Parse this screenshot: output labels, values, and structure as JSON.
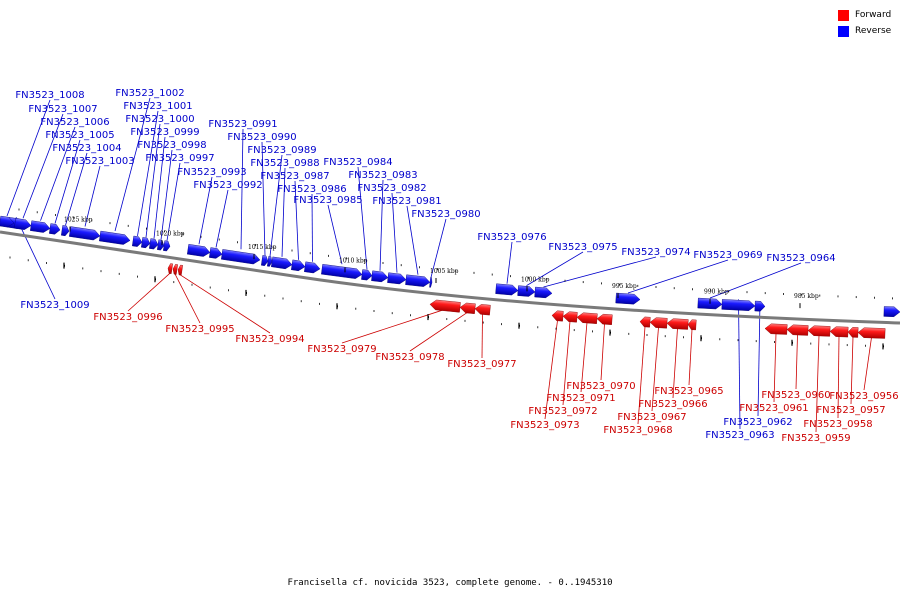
{
  "legend": {
    "forward": {
      "label": "Forward",
      "color": "#ff0000"
    },
    "reverse": {
      "label": "Reverse",
      "color": "#0000ff"
    }
  },
  "caption": "Francisella cf. novicida 3523, complete genome. - 0..1945310",
  "ticks": [
    "1025 kbp",
    "1020 kbp",
    "1015 kbp",
    "1010 kbp",
    "1005 kbp",
    "1000 kbp",
    "995 kbp",
    "990 kbp",
    "985 kbp"
  ],
  "genes": [
    {
      "name": "FN3523_1009",
      "strand": "reverse"
    },
    {
      "name": "FN3523_1008",
      "strand": "reverse"
    },
    {
      "name": "FN3523_1007",
      "strand": "reverse"
    },
    {
      "name": "FN3523_1006",
      "strand": "reverse"
    },
    {
      "name": "FN3523_1005",
      "strand": "reverse"
    },
    {
      "name": "FN3523_1004",
      "strand": "reverse"
    },
    {
      "name": "FN3523_1003",
      "strand": "reverse"
    },
    {
      "name": "FN3523_1002",
      "strand": "reverse"
    },
    {
      "name": "FN3523_1001",
      "strand": "reverse"
    },
    {
      "name": "FN3523_1000",
      "strand": "reverse"
    },
    {
      "name": "FN3523_0999",
      "strand": "reverse"
    },
    {
      "name": "FN3523_0998",
      "strand": "reverse"
    },
    {
      "name": "FN3523_0997",
      "strand": "reverse"
    },
    {
      "name": "FN3523_0996",
      "strand": "forward"
    },
    {
      "name": "FN3523_0995",
      "strand": "forward"
    },
    {
      "name": "FN3523_0994",
      "strand": "forward"
    },
    {
      "name": "FN3523_0993",
      "strand": "reverse"
    },
    {
      "name": "FN3523_0992",
      "strand": "reverse"
    },
    {
      "name": "FN3523_0991",
      "strand": "reverse"
    },
    {
      "name": "FN3523_0990",
      "strand": "reverse"
    },
    {
      "name": "FN3523_0989",
      "strand": "reverse"
    },
    {
      "name": "FN3523_0988",
      "strand": "reverse"
    },
    {
      "name": "FN3523_0987",
      "strand": "reverse"
    },
    {
      "name": "FN3523_0986",
      "strand": "reverse"
    },
    {
      "name": "FN3523_0985",
      "strand": "reverse"
    },
    {
      "name": "FN3523_0984",
      "strand": "reverse"
    },
    {
      "name": "FN3523_0983",
      "strand": "reverse"
    },
    {
      "name": "FN3523_0982",
      "strand": "reverse"
    },
    {
      "name": "FN3523_0981",
      "strand": "reverse"
    },
    {
      "name": "FN3523_0980",
      "strand": "reverse"
    },
    {
      "name": "FN3523_0979",
      "strand": "forward"
    },
    {
      "name": "FN3523_0978",
      "strand": "forward"
    },
    {
      "name": "FN3523_0977",
      "strand": "forward"
    },
    {
      "name": "FN3523_0976",
      "strand": "reverse"
    },
    {
      "name": "FN3523_0975",
      "strand": "reverse"
    },
    {
      "name": "FN3523_0974",
      "strand": "reverse"
    },
    {
      "name": "FN3523_0973",
      "strand": "forward"
    },
    {
      "name": "FN3523_0972",
      "strand": "forward"
    },
    {
      "name": "FN3523_0971",
      "strand": "forward"
    },
    {
      "name": "FN3523_0970",
      "strand": "forward"
    },
    {
      "name": "FN3523_0969",
      "strand": "reverse"
    },
    {
      "name": "FN3523_0968",
      "strand": "forward"
    },
    {
      "name": "FN3523_0967",
      "strand": "forward"
    },
    {
      "name": "FN3523_0966",
      "strand": "forward"
    },
    {
      "name": "FN3523_0965",
      "strand": "forward"
    },
    {
      "name": "FN3523_0964",
      "strand": "reverse"
    },
    {
      "name": "FN3523_0963",
      "strand": "reverse"
    },
    {
      "name": "FN3523_0962",
      "strand": "reverse"
    },
    {
      "name": "FN3523_0961",
      "strand": "forward"
    },
    {
      "name": "FN3523_0960",
      "strand": "forward"
    },
    {
      "name": "FN3523_0959",
      "strand": "forward"
    },
    {
      "name": "FN3523_0958",
      "strand": "forward"
    },
    {
      "name": "FN3523_0957",
      "strand": "forward"
    },
    {
      "name": "FN3523_0956",
      "strand": "forward"
    }
  ]
}
